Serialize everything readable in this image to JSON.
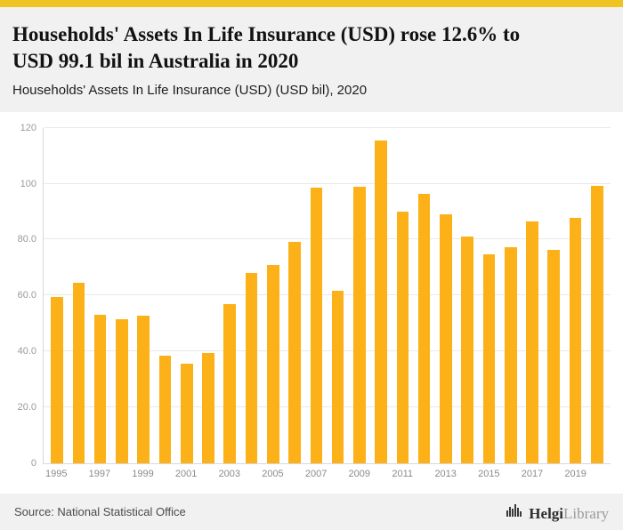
{
  "colors": {
    "accent_strip": "#F0C420",
    "bar": "#FBB117"
  },
  "chart_data": {
    "type": "bar",
    "title": "Households' Assets In Life Insurance (USD) rose 12.6% to USD 99.1 bil in Australia in 2020",
    "subtitle": "Households' Assets In Life Insurance (USD) (USD bil), 2020",
    "xlabel": "",
    "ylabel": "",
    "ylim": [
      0,
      120
    ],
    "grid": true,
    "legend": "none",
    "categories": [
      1995,
      1996,
      1997,
      1998,
      1999,
      2000,
      2001,
      2002,
      2003,
      2004,
      2005,
      2006,
      2007,
      2008,
      2009,
      2010,
      2011,
      2012,
      2013,
      2014,
      2015,
      2016,
      2017,
      2018,
      2019,
      2020
    ],
    "values": [
      59.5,
      64.5,
      53.2,
      51.5,
      52.8,
      38.5,
      35.5,
      39.3,
      57.0,
      68.2,
      70.8,
      79.2,
      98.6,
      61.7,
      98.9,
      115.6,
      90.0,
      96.5,
      89.0,
      81.0,
      74.7,
      77.2,
      86.5,
      76.2,
      87.9,
      99.1
    ],
    "yticks": [
      {
        "value": 0,
        "label": "0"
      },
      {
        "value": 20,
        "label": "20.0"
      },
      {
        "value": 40,
        "label": "40.0"
      },
      {
        "value": 60,
        "label": "60.0"
      },
      {
        "value": 80,
        "label": "80.0"
      },
      {
        "value": 100,
        "label": "100"
      },
      {
        "value": 120,
        "label": "120"
      }
    ],
    "xtick_labels": [
      "1995",
      "1997",
      "1999",
      "2001",
      "2003",
      "2005",
      "2007",
      "2009",
      "2011",
      "2013",
      "2015",
      "2017",
      "2019"
    ]
  },
  "footer": {
    "source": "Source: National Statistical Office",
    "logo_bold": "Helgi",
    "logo_light": "Library"
  }
}
